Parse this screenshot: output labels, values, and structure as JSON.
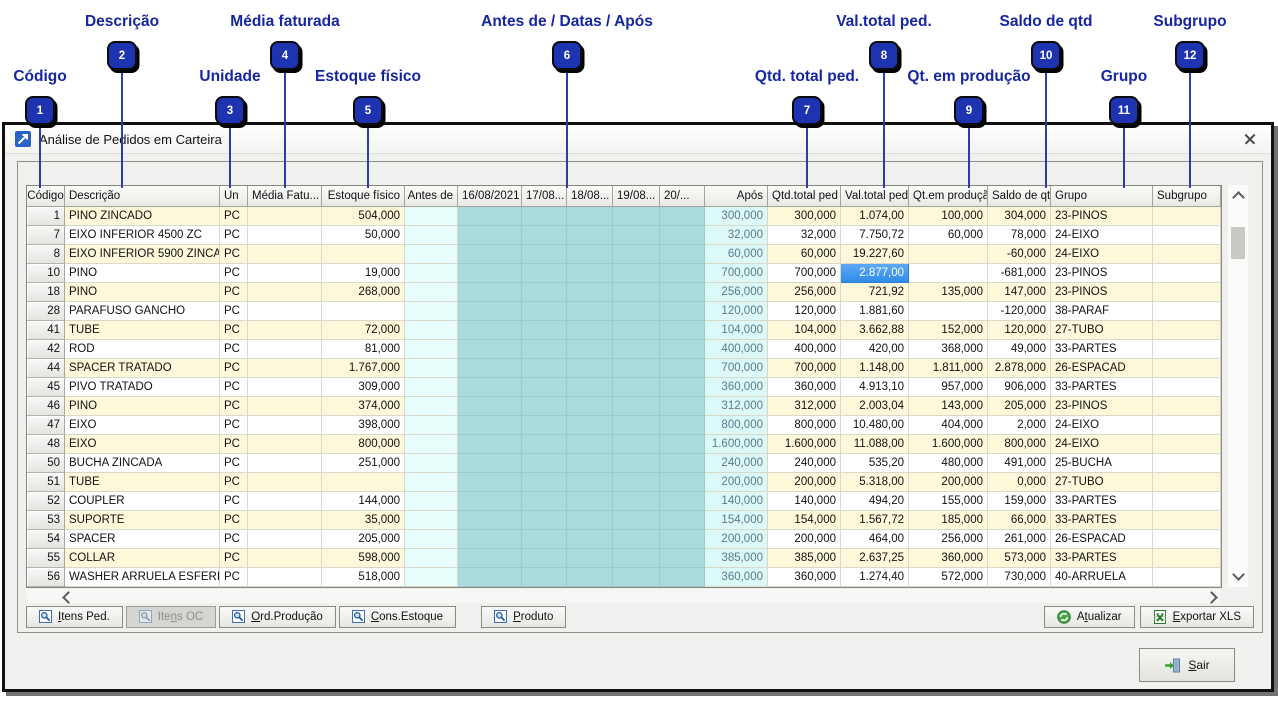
{
  "window": {
    "title": "Análise de Pedidos em Carteira"
  },
  "annotations": {
    "items": [
      {
        "num": "1",
        "label": "Código"
      },
      {
        "num": "2",
        "label": "Descrição"
      },
      {
        "num": "3",
        "label": "Unidade"
      },
      {
        "num": "4",
        "label": "Média faturada"
      },
      {
        "num": "5",
        "label": "Estoque físico"
      },
      {
        "num": "6",
        "label": "Antes de / Datas / Após"
      },
      {
        "num": "7",
        "label": "Qtd. total ped."
      },
      {
        "num": "8",
        "label": "Val.total ped."
      },
      {
        "num": "9",
        "label": "Qt. em produção"
      },
      {
        "num": "10",
        "label": "Saldo de qtd"
      },
      {
        "num": "11",
        "label": "Grupo"
      },
      {
        "num": "12",
        "label": "Subgrupo"
      }
    ]
  },
  "table": {
    "columns": [
      "Código",
      "Descrição",
      "Un",
      "Média Fatu...",
      "Estoque físico",
      "Antes de",
      "16/08/2021",
      "17/08...",
      "18/08...",
      "19/08...",
      "20/...",
      "Após",
      "Qtd.total ped",
      "Val.total ped",
      "Qt.em produção",
      "Saldo de qtd",
      "Grupo",
      "Subgrupo"
    ],
    "selected_cell": {
      "row_code": "10",
      "column": "Val.total ped",
      "value": "2.877,00"
    },
    "rows": [
      {
        "code": "1",
        "desc": "PINO ZINCADO",
        "un": "PC",
        "media": "",
        "estoque": "504,000",
        "antes": "",
        "apos": "300,000",
        "qtd": "300,000",
        "val": "1.074,00",
        "prod": "100,000",
        "saldo": "304,000",
        "grupo": "23-PINOS",
        "sub": ""
      },
      {
        "code": "7",
        "desc": "EIXO INFERIOR 4500 ZC",
        "un": "PC",
        "media": "",
        "estoque": "50,000",
        "antes": "",
        "apos": "32,000",
        "qtd": "32,000",
        "val": "7.750,72",
        "prod": "60,000",
        "saldo": "78,000",
        "grupo": "24-EIXO",
        "sub": ""
      },
      {
        "code": "8",
        "desc": "EIXO INFERIOR 5900 ZINCA...",
        "un": "PC",
        "media": "",
        "estoque": "",
        "antes": "",
        "apos": "60,000",
        "qtd": "60,000",
        "val": "19.227,60",
        "prod": "",
        "saldo": "-60,000",
        "grupo": "24-EIXO",
        "sub": ""
      },
      {
        "code": "10",
        "desc": "PINO",
        "un": "PC",
        "media": "",
        "estoque": "19,000",
        "antes": "",
        "apos": "700,000",
        "qtd": "700,000",
        "val": "2.877,00",
        "prod": "",
        "saldo": "-681,000",
        "grupo": "23-PINOS",
        "sub": "",
        "selected": true
      },
      {
        "code": "18",
        "desc": "PINO",
        "un": "PC",
        "media": "",
        "estoque": "268,000",
        "antes": "",
        "apos": "256,000",
        "qtd": "256,000",
        "val": "721,92",
        "prod": "135,000",
        "saldo": "147,000",
        "grupo": "23-PINOS",
        "sub": ""
      },
      {
        "code": "28",
        "desc": "PARAFUSO GANCHO",
        "un": "PC",
        "media": "",
        "estoque": "",
        "antes": "",
        "apos": "120,000",
        "qtd": "120,000",
        "val": "1.881,60",
        "prod": "",
        "saldo": "-120,000",
        "grupo": "38-PARAF",
        "sub": ""
      },
      {
        "code": "41",
        "desc": "TUBE",
        "un": "PC",
        "media": "",
        "estoque": "72,000",
        "antes": "",
        "apos": "104,000",
        "qtd": "104,000",
        "val": "3.662,88",
        "prod": "152,000",
        "saldo": "120,000",
        "grupo": "27-TUBO",
        "sub": ""
      },
      {
        "code": "42",
        "desc": "ROD",
        "un": "PC",
        "media": "",
        "estoque": "81,000",
        "antes": "",
        "apos": "400,000",
        "qtd": "400,000",
        "val": "420,00",
        "prod": "368,000",
        "saldo": "49,000",
        "grupo": "33-PARTES",
        "sub": ""
      },
      {
        "code": "44",
        "desc": "SPACER TRATADO",
        "un": "PC",
        "media": "",
        "estoque": "1.767,000",
        "antes": "",
        "apos": "700,000",
        "qtd": "700,000",
        "val": "1.148,00",
        "prod": "1.811,000",
        "saldo": "2.878,000",
        "grupo": "26-ESPACAD",
        "sub": ""
      },
      {
        "code": "45",
        "desc": "PIVO TRATADO",
        "un": "PC",
        "media": "",
        "estoque": "309,000",
        "antes": "",
        "apos": "360,000",
        "qtd": "360,000",
        "val": "4.913,10",
        "prod": "957,000",
        "saldo": "906,000",
        "grupo": "33-PARTES",
        "sub": ""
      },
      {
        "code": "46",
        "desc": "PINO",
        "un": "PC",
        "media": "",
        "estoque": "374,000",
        "antes": "",
        "apos": "312,000",
        "qtd": "312,000",
        "val": "2.003,04",
        "prod": "143,000",
        "saldo": "205,000",
        "grupo": "23-PINOS",
        "sub": ""
      },
      {
        "code": "47",
        "desc": "EIXO",
        "un": "PC",
        "media": "",
        "estoque": "398,000",
        "antes": "",
        "apos": "800,000",
        "qtd": "800,000",
        "val": "10.480,00",
        "prod": "404,000",
        "saldo": "2,000",
        "grupo": "24-EIXO",
        "sub": ""
      },
      {
        "code": "48",
        "desc": "EIXO",
        "un": "PC",
        "media": "",
        "estoque": "800,000",
        "antes": "",
        "apos": "1.600,000",
        "qtd": "1.600,000",
        "val": "11.088,00",
        "prod": "1.600,000",
        "saldo": "800,000",
        "grupo": "24-EIXO",
        "sub": ""
      },
      {
        "code": "50",
        "desc": "BUCHA ZINCADA",
        "un": "PC",
        "media": "",
        "estoque": "251,000",
        "antes": "",
        "apos": "240,000",
        "qtd": "240,000",
        "val": "535,20",
        "prod": "480,000",
        "saldo": "491,000",
        "grupo": "25-BUCHA",
        "sub": ""
      },
      {
        "code": "51",
        "desc": "TUBE",
        "un": "PC",
        "media": "",
        "estoque": "",
        "antes": "",
        "apos": "200,000",
        "qtd": "200,000",
        "val": "5.318,00",
        "prod": "200,000",
        "saldo": "0,000",
        "grupo": "27-TUBO",
        "sub": ""
      },
      {
        "code": "52",
        "desc": "COUPLER",
        "un": "PC",
        "media": "",
        "estoque": "144,000",
        "antes": "",
        "apos": "140,000",
        "qtd": "140,000",
        "val": "494,20",
        "prod": "155,000",
        "saldo": "159,000",
        "grupo": "33-PARTES",
        "sub": ""
      },
      {
        "code": "53",
        "desc": "SUPORTE",
        "un": "PC",
        "media": "",
        "estoque": "35,000",
        "antes": "",
        "apos": "154,000",
        "qtd": "154,000",
        "val": "1.567,72",
        "prod": "185,000",
        "saldo": "66,000",
        "grupo": "33-PARTES",
        "sub": ""
      },
      {
        "code": "54",
        "desc": "SPACER",
        "un": "PC",
        "media": "",
        "estoque": "205,000",
        "antes": "",
        "apos": "200,000",
        "qtd": "200,000",
        "val": "464,00",
        "prod": "256,000",
        "saldo": "261,000",
        "grupo": "26-ESPACAD",
        "sub": ""
      },
      {
        "code": "55",
        "desc": "COLLAR",
        "un": "PC",
        "media": "",
        "estoque": "598,000",
        "antes": "",
        "apos": "385,000",
        "qtd": "385,000",
        "val": "2.637,25",
        "prod": "360,000",
        "saldo": "573,000",
        "grupo": "33-PARTES",
        "sub": ""
      },
      {
        "code": "56",
        "desc": "WASHER ARRUELA ESFERICA",
        "un": "PC",
        "media": "",
        "estoque": "518,000",
        "antes": "",
        "apos": "360,000",
        "qtd": "360,000",
        "val": "1.274,40",
        "prod": "572,000",
        "saldo": "730,000",
        "grupo": "40-ARRUELA",
        "sub": ""
      }
    ]
  },
  "toolbar": {
    "itens_ped": {
      "pre": "",
      "key": "I",
      "post": "tens Ped."
    },
    "itens_oc": {
      "pre": "Ite",
      "key": "n",
      "post": "s OC"
    },
    "ord_producao": {
      "pre": "",
      "key": "O",
      "post": "rd.Produção"
    },
    "cons_estoque": {
      "pre": "",
      "key": "C",
      "post": "ons.Estoque"
    },
    "produto": {
      "pre": "",
      "key": "P",
      "post": "roduto"
    },
    "atualizar": {
      "pre": "A",
      "key": "t",
      "post": "ualizar"
    },
    "exportar_xls": {
      "pre": "",
      "key": "E",
      "post": "xportar XLS"
    },
    "sair": {
      "pre": "",
      "key": "S",
      "post": "air"
    }
  },
  "colors": {
    "annotation_blue": "#16269f",
    "row_yellow": "#fcf8d9",
    "date_teal": "#abdbdc",
    "antes_cyan": "#e6fdfc",
    "apos_cyan": "#dcf9f8",
    "selection_blue": "#3a92ee"
  }
}
